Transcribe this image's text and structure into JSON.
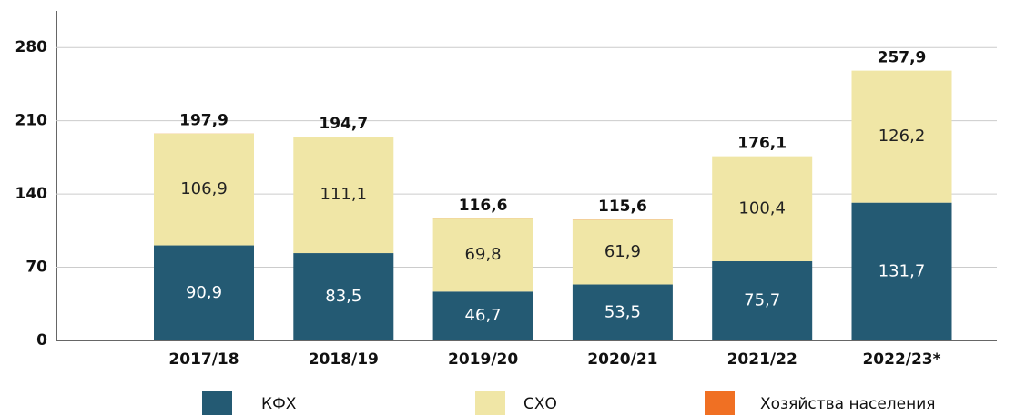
{
  "chart_data": {
    "type": "stacked_bar",
    "categories": [
      "2017/18",
      "2018/19",
      "2019/20",
      "2020/21",
      "2021/22",
      "2022/23*"
    ],
    "series": [
      {
        "name": "КФХ",
        "color": "#245a73",
        "values": [
          90.9,
          83.5,
          46.7,
          53.5,
          75.7,
          131.7
        ],
        "value_labels": [
          "90,9",
          "83,5",
          "46,7",
          "53,5",
          "75,7",
          "131,7"
        ]
      },
      {
        "name": "СХО",
        "color": "#f0e6a6",
        "values": [
          106.9,
          111.1,
          69.8,
          61.9,
          100.4,
          126.2
        ],
        "value_labels": [
          "106,9",
          "111,1",
          "69,8",
          "61,9",
          "100,4",
          "126,2"
        ]
      },
      {
        "name": "Хозяйства населения",
        "color": "#f07023",
        "values": [
          0.1,
          0.1,
          0.1,
          0.2,
          0,
          0
        ]
      }
    ],
    "totals": [
      197.9,
      194.7,
      116.6,
      115.6,
      176.1,
      257.9
    ],
    "total_labels": [
      "197,9",
      "194,7",
      "116,6",
      "115,6",
      "176,1",
      "257,9"
    ],
    "ylim": [
      0,
      315
    ],
    "yticks": [
      0,
      70,
      140,
      210,
      280
    ],
    "grid": true
  }
}
